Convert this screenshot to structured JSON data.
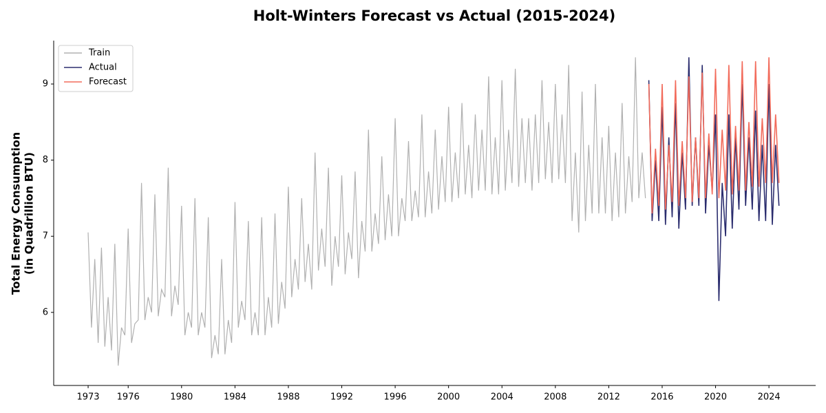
{
  "chart_data": {
    "type": "line",
    "title": "Holt-Winters Forecast vs Actual (2015-2024)",
    "ylabel": [
      "Total Energy Consumption",
      "(in Quadrillion BTU)"
    ],
    "x": [
      1973,
      1973.25,
      1973.5,
      1973.75,
      1974,
      1974.25,
      1974.5,
      1974.75,
      1975,
      1975.25,
      1975.5,
      1975.75,
      1976,
      1976.25,
      1976.5,
      1976.75,
      1977,
      1977.25,
      1977.5,
      1977.75,
      1978,
      1978.25,
      1978.5,
      1978.75,
      1979,
      1979.25,
      1979.5,
      1979.75,
      1980,
      1980.25,
      1980.5,
      1980.75,
      1981,
      1981.25,
      1981.5,
      1981.75,
      1982,
      1982.25,
      1982.5,
      1982.75,
      1983,
      1983.25,
      1983.5,
      1983.75,
      1984,
      1984.25,
      1984.5,
      1984.75,
      1985,
      1985.25,
      1985.5,
      1985.75,
      1986,
      1986.25,
      1986.5,
      1986.75,
      1987,
      1987.25,
      1987.5,
      1987.75,
      1988,
      1988.25,
      1988.5,
      1988.75,
      1989,
      1989.25,
      1989.5,
      1989.75,
      1990,
      1990.25,
      1990.5,
      1990.75,
      1991,
      1991.25,
      1991.5,
      1991.75,
      1992,
      1992.25,
      1992.5,
      1992.75,
      1993,
      1993.25,
      1993.5,
      1993.75,
      1994,
      1994.25,
      1994.5,
      1994.75,
      1995,
      1995.25,
      1995.5,
      1995.75,
      1996,
      1996.25,
      1996.5,
      1996.75,
      1997,
      1997.25,
      1997.5,
      1997.75,
      1998,
      1998.25,
      1998.5,
      1998.75,
      1999,
      1999.25,
      1999.5,
      1999.75,
      2000,
      2000.25,
      2000.5,
      2000.75,
      2001,
      2001.25,
      2001.5,
      2001.75,
      2002,
      2002.25,
      2002.5,
      2002.75,
      2003,
      2003.25,
      2003.5,
      2003.75,
      2004,
      2004.25,
      2004.5,
      2004.75,
      2005,
      2005.25,
      2005.5,
      2005.75,
      2006,
      2006.25,
      2006.5,
      2006.75,
      2007,
      2007.25,
      2007.5,
      2007.75,
      2008,
      2008.25,
      2008.5,
      2008.75,
      2009,
      2009.25,
      2009.5,
      2009.75,
      2010,
      2010.25,
      2010.5,
      2010.75,
      2011,
      2011.25,
      2011.5,
      2011.75,
      2012,
      2012.25,
      2012.5,
      2012.75,
      2013,
      2013.25,
      2013.5,
      2013.75,
      2014,
      2014.25,
      2014.5,
      2014.75,
      2015,
      2015.25,
      2015.5,
      2015.75,
      2016,
      2016.25,
      2016.5,
      2016.75,
      2017,
      2017.25,
      2017.5,
      2017.75,
      2018,
      2018.25,
      2018.5,
      2018.75,
      2019,
      2019.25,
      2019.5,
      2019.75,
      2020,
      2020.25,
      2020.5,
      2020.75,
      2021,
      2021.25,
      2021.5,
      2021.75,
      2022,
      2022.25,
      2022.5,
      2022.75,
      2023,
      2023.25,
      2023.5,
      2023.75,
      2024,
      2024.25,
      2024.5,
      2024.75
    ],
    "series": [
      {
        "name": "Train",
        "color": "#b0b0b0",
        "values": [
          7.05,
          5.8,
          6.7,
          5.6,
          6.85,
          5.55,
          6.2,
          5.5,
          6.9,
          5.3,
          5.8,
          5.7,
          7.1,
          5.6,
          5.85,
          5.9,
          7.7,
          5.9,
          6.2,
          6.0,
          7.55,
          5.95,
          6.3,
          6.2,
          7.9,
          5.95,
          6.35,
          6.1,
          7.4,
          5.7,
          6.0,
          5.8,
          7.5,
          5.7,
          6.0,
          5.8,
          7.25,
          5.4,
          5.7,
          5.45,
          6.7,
          5.45,
          5.9,
          5.6,
          7.45,
          5.8,
          6.15,
          5.9,
          7.2,
          5.7,
          6.0,
          5.7,
          7.25,
          5.7,
          6.2,
          5.8,
          7.3,
          5.85,
          6.4,
          6.05,
          7.65,
          6.2,
          6.7,
          6.3,
          7.5,
          6.4,
          6.9,
          6.3,
          8.1,
          6.55,
          7.1,
          6.6,
          7.9,
          6.35,
          7.0,
          6.6,
          7.8,
          6.5,
          7.05,
          6.7,
          7.85,
          6.45,
          7.2,
          6.8,
          8.4,
          6.8,
          7.3,
          6.9,
          8.05,
          6.95,
          7.55,
          7.0,
          8.55,
          7.0,
          7.5,
          7.2,
          8.25,
          7.2,
          7.6,
          7.25,
          8.6,
          7.25,
          7.85,
          7.3,
          8.4,
          7.35,
          8.05,
          7.45,
          8.7,
          7.45,
          8.1,
          7.5,
          8.75,
          7.55,
          8.2,
          7.5,
          8.6,
          7.6,
          8.4,
          7.6,
          9.1,
          7.55,
          8.3,
          7.55,
          9.05,
          7.6,
          8.4,
          7.7,
          9.2,
          7.65,
          8.55,
          7.7,
          8.55,
          7.6,
          8.6,
          7.7,
          9.05,
          7.75,
          8.5,
          7.7,
          9.0,
          7.75,
          8.6,
          7.7,
          9.25,
          7.2,
          8.1,
          7.05,
          8.9,
          7.2,
          8.2,
          7.3,
          9.0,
          7.3,
          8.3,
          7.3,
          8.45,
          7.2,
          8.1,
          7.25,
          8.75,
          7.3,
          8.05,
          7.45,
          9.35,
          7.5,
          8.1,
          7.5,
          null,
          null,
          null,
          null,
          null,
          null,
          null,
          null,
          null,
          null,
          null,
          null,
          null,
          null,
          null,
          null,
          null,
          null,
          null,
          null,
          null,
          null,
          null,
          null,
          null,
          null,
          null,
          null,
          null,
          null,
          null,
          null,
          null,
          null,
          null,
          null,
          null,
          null,
          null,
          null
        ]
      },
      {
        "name": "Actual",
        "color": "#2b2d6e",
        "values": [
          null,
          null,
          null,
          null,
          null,
          null,
          null,
          null,
          null,
          null,
          null,
          null,
          null,
          null,
          null,
          null,
          null,
          null,
          null,
          null,
          null,
          null,
          null,
          null,
          null,
          null,
          null,
          null,
          null,
          null,
          null,
          null,
          null,
          null,
          null,
          null,
          null,
          null,
          null,
          null,
          null,
          null,
          null,
          null,
          null,
          null,
          null,
          null,
          null,
          null,
          null,
          null,
          null,
          null,
          null,
          null,
          null,
          null,
          null,
          null,
          null,
          null,
          null,
          null,
          null,
          null,
          null,
          null,
          null,
          null,
          null,
          null,
          null,
          null,
          null,
          null,
          null,
          null,
          null,
          null,
          null,
          null,
          null,
          null,
          null,
          null,
          null,
          null,
          null,
          null,
          null,
          null,
          null,
          null,
          null,
          null,
          null,
          null,
          null,
          null,
          null,
          null,
          null,
          null,
          null,
          null,
          null,
          null,
          null,
          null,
          null,
          null,
          null,
          null,
          null,
          null,
          null,
          null,
          null,
          null,
          null,
          null,
          null,
          null,
          null,
          null,
          null,
          null,
          null,
          null,
          null,
          null,
          null,
          null,
          null,
          null,
          null,
          null,
          null,
          null,
          null,
          null,
          null,
          null,
          null,
          null,
          null,
          null,
          null,
          null,
          null,
          null,
          null,
          null,
          null,
          null,
          null,
          null,
          null,
          null,
          null,
          null,
          null,
          null,
          null,
          null,
          null,
          null,
          9.05,
          7.2,
          8.0,
          7.2,
          8.7,
          7.15,
          8.3,
          7.25,
          8.75,
          7.1,
          8.1,
          7.35,
          9.35,
          7.4,
          8.3,
          7.4,
          9.25,
          7.3,
          8.2,
          7.6,
          8.6,
          6.15,
          7.7,
          7.0,
          8.6,
          7.1,
          8.3,
          7.35,
          9.0,
          7.4,
          8.3,
          7.35,
          8.65,
          7.2,
          8.2,
          7.2,
          9.0,
          7.15,
          8.2,
          7.4
        ]
      },
      {
        "name": "Forecast",
        "color": "#f26b5b",
        "values": [
          null,
          null,
          null,
          null,
          null,
          null,
          null,
          null,
          null,
          null,
          null,
          null,
          null,
          null,
          null,
          null,
          null,
          null,
          null,
          null,
          null,
          null,
          null,
          null,
          null,
          null,
          null,
          null,
          null,
          null,
          null,
          null,
          null,
          null,
          null,
          null,
          null,
          null,
          null,
          null,
          null,
          null,
          null,
          null,
          null,
          null,
          null,
          null,
          null,
          null,
          null,
          null,
          null,
          null,
          null,
          null,
          null,
          null,
          null,
          null,
          null,
          null,
          null,
          null,
          null,
          null,
          null,
          null,
          null,
          null,
          null,
          null,
          null,
          null,
          null,
          null,
          null,
          null,
          null,
          null,
          null,
          null,
          null,
          null,
          null,
          null,
          null,
          null,
          null,
          null,
          null,
          null,
          null,
          null,
          null,
          null,
          null,
          null,
          null,
          null,
          null,
          null,
          null,
          null,
          null,
          null,
          null,
          null,
          null,
          null,
          null,
          null,
          null,
          null,
          null,
          null,
          null,
          null,
          null,
          null,
          null,
          null,
          null,
          null,
          null,
          null,
          null,
          null,
          null,
          null,
          null,
          null,
          null,
          null,
          null,
          null,
          null,
          null,
          null,
          null,
          null,
          null,
          null,
          null,
          null,
          null,
          null,
          null,
          null,
          null,
          null,
          null,
          null,
          null,
          null,
          null,
          null,
          null,
          null,
          null,
          null,
          null,
          null,
          null,
          null,
          null,
          null,
          null,
          9.0,
          7.3,
          8.15,
          7.4,
          9.0,
          7.35,
          8.2,
          7.45,
          9.05,
          7.4,
          8.25,
          7.5,
          9.1,
          7.45,
          8.3,
          7.5,
          9.15,
          7.5,
          8.35,
          7.55,
          9.2,
          7.5,
          8.4,
          7.6,
          9.25,
          7.55,
          8.45,
          7.6,
          9.3,
          7.6,
          8.5,
          7.65,
          9.3,
          7.65,
          8.55,
          7.7,
          9.35,
          7.7,
          8.6,
          7.7
        ]
      }
    ],
    "xlim": [
      1970.42,
      2027.5
    ],
    "xticks": [
      1973,
      1976,
      1980,
      1984,
      1988,
      1992,
      1996,
      2000,
      2004,
      2008,
      2012,
      2016,
      2020,
      2024
    ],
    "ylim": [
      5.04,
      9.57
    ],
    "yticks": [
      6,
      7,
      8,
      9
    ],
    "legend": "upper left",
    "grid": false
  }
}
